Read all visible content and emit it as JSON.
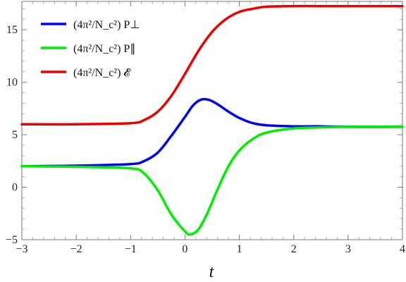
{
  "chart_data": {
    "type": "line",
    "title": "",
    "xlabel": "t",
    "ylabel": "",
    "xlim": [
      -3,
      4
    ],
    "ylim": [
      -5,
      17.7
    ],
    "x_ticks": [
      -3,
      -2,
      -1,
      0,
      1,
      2,
      3,
      4
    ],
    "x_tick_labels": [
      "−3",
      "−2",
      "−1",
      "0",
      "1",
      "2",
      "3",
      "4"
    ],
    "y_ticks": [
      -5,
      0,
      5,
      10,
      15
    ],
    "y_tick_labels": [
      "−5",
      "0",
      "5",
      "10",
      "15"
    ],
    "grid": false,
    "legend_position": "top-left",
    "series": [
      {
        "name": "(4π²/N_c²) P⊥",
        "color": "#0000ff",
        "x": [
          -3,
          -2,
          -1,
          -0.75,
          -0.5,
          -0.25,
          0,
          0.15,
          0.3,
          0.45,
          0.6,
          0.8,
          1,
          1.25,
          1.5,
          2,
          2.5,
          3,
          4
        ],
        "y": [
          2.0,
          2.05,
          2.2,
          2.5,
          3.3,
          4.9,
          6.7,
          7.8,
          8.35,
          8.3,
          7.9,
          7.2,
          6.6,
          6.1,
          5.9,
          5.8,
          5.8,
          5.75,
          5.75
        ]
      },
      {
        "name": "(4π²/N_c²) P∥",
        "color": "#00ee00",
        "x": [
          -3,
          -2,
          -1,
          -0.75,
          -0.5,
          -0.25,
          0,
          0.1,
          0.25,
          0.4,
          0.6,
          0.8,
          1,
          1.25,
          1.5,
          2,
          2.5,
          3,
          4
        ],
        "y": [
          2.0,
          1.95,
          1.8,
          1.3,
          -0.3,
          -2.6,
          -4.2,
          -4.5,
          -4.0,
          -2.6,
          -0.2,
          2.0,
          3.5,
          4.6,
          5.2,
          5.6,
          5.7,
          5.75,
          5.75
        ]
      },
      {
        "name": "(4π²/N_c²) 𝓔",
        "color": "#ee0000",
        "x": [
          -3,
          -2,
          -1,
          -0.75,
          -0.5,
          -0.25,
          0,
          0.25,
          0.5,
          0.75,
          1,
          1.25,
          1.5,
          2,
          2.5,
          3,
          4
        ],
        "y": [
          6.0,
          6.0,
          6.1,
          6.4,
          7.2,
          8.7,
          10.8,
          13.0,
          14.8,
          16.0,
          16.7,
          17.0,
          17.2,
          17.25,
          17.25,
          17.25,
          17.25
        ]
      }
    ]
  }
}
